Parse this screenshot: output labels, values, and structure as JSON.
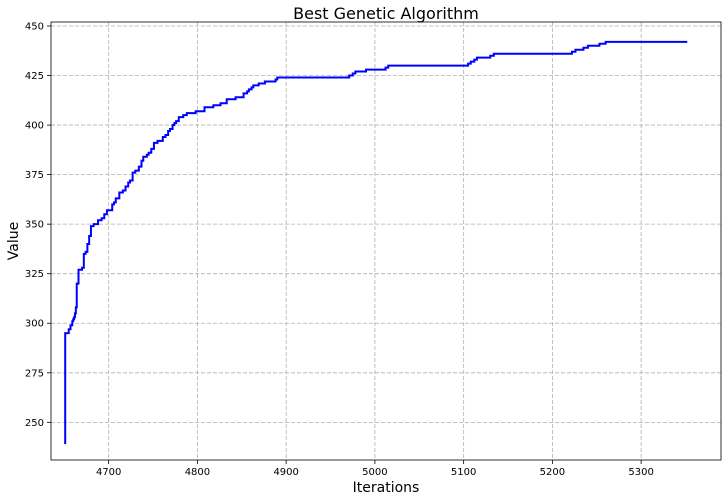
{
  "chart_data": {
    "type": "line",
    "title": "Best Genetic Algorithm",
    "xlabel": "Iterations",
    "ylabel": "Value",
    "xlim": [
      4635,
      5390
    ],
    "ylim": [
      231,
      452
    ],
    "xticks": [
      4700,
      4800,
      4900,
      5000,
      5100,
      5200,
      5300
    ],
    "yticks": [
      250,
      275,
      300,
      325,
      350,
      375,
      400,
      425,
      450
    ],
    "grid": true,
    "line_color": "#0000ff",
    "series": [
      {
        "style": "step",
        "x": [
          4651,
          4651,
          4652,
          4655,
          4657,
          4659,
          4660,
          4661,
          4662,
          4663,
          4664,
          4666,
          4670,
          4672,
          4674,
          4676,
          4678,
          4680,
          4683,
          4688,
          4692,
          4695,
          4698,
          4704,
          4706,
          4708,
          4712,
          4716,
          4719,
          4722,
          4724,
          4727,
          4730,
          4734,
          4737,
          4739,
          4741,
          4742,
          4743,
          4745,
          4748,
          4751,
          4755,
          4761,
          4764,
          4767,
          4769,
          4772,
          4774,
          4776,
          4779,
          4784,
          4788,
          4790,
          4798,
          4808,
          4818,
          4826,
          4833,
          4843,
          4847,
          4852,
          4856,
          4858,
          4861,
          4863,
          4869,
          4876,
          4883,
          4888,
          4890,
          4910,
          4935,
          4969,
          4971,
          4975,
          4978,
          4990,
          5000,
          5012,
          5015,
          5040,
          5080,
          5105,
          5108,
          5112,
          5115,
          5125,
          5130,
          5134,
          5170,
          5200,
          5219,
          5222,
          5226,
          5235,
          5240,
          5250,
          5253,
          5260,
          5300,
          5352
        ],
        "y": [
          239,
          295,
          295,
          297,
          299,
          301,
          302,
          303,
          305,
          308,
          320,
          327,
          328,
          335,
          336,
          340,
          344,
          349,
          350,
          352,
          353,
          355,
          357,
          360,
          361,
          363,
          366,
          367,
          369,
          371,
          372,
          376,
          377,
          379,
          382,
          384,
          384,
          384,
          385,
          386,
          388,
          391,
          392,
          394,
          395,
          397,
          398,
          400,
          401,
          402,
          404,
          405,
          406,
          406,
          407,
          409,
          410,
          411,
          413,
          414,
          414,
          416,
          417,
          418,
          419,
          420,
          421,
          422,
          422,
          423,
          424,
          424,
          424,
          424,
          425,
          426,
          427,
          428,
          428,
          429,
          430,
          430,
          430,
          431,
          432,
          433,
          434,
          434,
          435,
          436,
          436,
          436,
          436,
          437,
          438,
          439,
          440,
          440,
          441,
          442,
          442,
          442
        ]
      }
    ]
  }
}
